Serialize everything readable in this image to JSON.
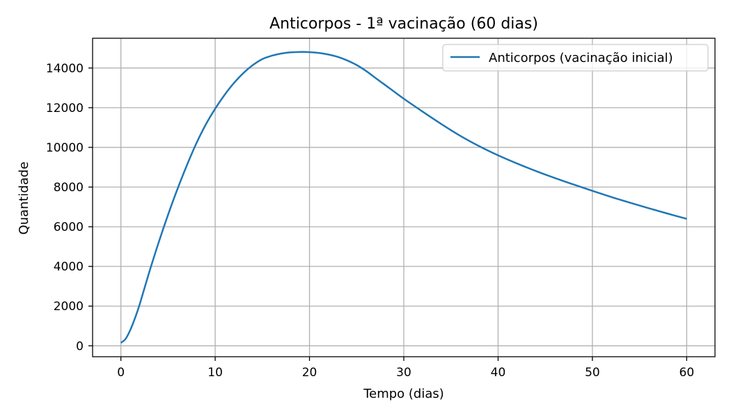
{
  "chart_data": {
    "type": "line",
    "title": "Anticorpos - 1ª vacinação (60 dias)",
    "xlabel": "Tempo (dias)",
    "ylabel": "Quantidade",
    "xlim": [
      -3,
      63
    ],
    "ylim": [
      -550,
      15500
    ],
    "x_ticks": [
      0,
      10,
      20,
      30,
      40,
      50,
      60
    ],
    "y_ticks": [
      0,
      2000,
      4000,
      6000,
      8000,
      10000,
      12000,
      14000
    ],
    "x_tick_labels": [
      "0",
      "10",
      "20",
      "30",
      "40",
      "50",
      "60"
    ],
    "y_tick_labels": [
      "0",
      "2000",
      "4000",
      "6000",
      "8000",
      "10000",
      "12000",
      "14000"
    ],
    "grid": true,
    "legend": {
      "position": "top-right"
    },
    "colors": {
      "series": "#1f77b4",
      "grid": "#b0b0b0",
      "frame": "#000000"
    },
    "series": [
      {
        "name": "Anticorpos (vacinação inicial)",
        "x": [
          0,
          0.5,
          1,
          1.5,
          2,
          3,
          4,
          5,
          6,
          7,
          8,
          9,
          10,
          11,
          12,
          13,
          14,
          15,
          16,
          17,
          18,
          19,
          20,
          21,
          22,
          23,
          24,
          25,
          26,
          27,
          28,
          29,
          30,
          32,
          34,
          36,
          38,
          40,
          42,
          44,
          46,
          48,
          50,
          52,
          54,
          56,
          58,
          60
        ],
        "y": [
          150,
          350,
          800,
          1400,
          2100,
          3700,
          5200,
          6600,
          7900,
          9100,
          10200,
          11150,
          11950,
          12650,
          13250,
          13750,
          14150,
          14450,
          14620,
          14730,
          14790,
          14810,
          14800,
          14760,
          14680,
          14560,
          14380,
          14150,
          13850,
          13500,
          13150,
          12800,
          12450,
          11800,
          11170,
          10580,
          10060,
          9600,
          9190,
          8810,
          8460,
          8130,
          7810,
          7500,
          7210,
          6930,
          6660,
          6400
        ]
      }
    ]
  }
}
